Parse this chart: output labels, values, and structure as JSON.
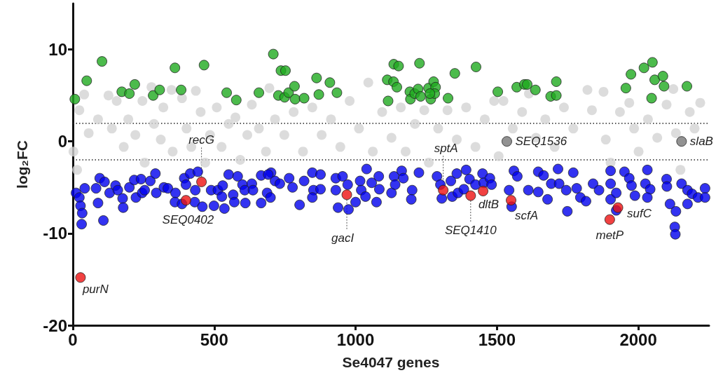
{
  "chart_data": {
    "type": "scatter",
    "xlabel": "Se4047 genes",
    "ylabel": "log₂FC",
    "xlim": [
      0,
      2250
    ],
    "xticks": [
      0,
      500,
      1000,
      1500,
      2000
    ],
    "ylim": [
      -20,
      15
    ],
    "yticks": [
      -20,
      -10,
      0,
      10
    ],
    "grid": false,
    "marker": "circle",
    "ref_lines": [
      {
        "axis": "y",
        "value": 2,
        "color": "#222222",
        "line_style": "dotted"
      },
      {
        "axis": "y",
        "value": -2,
        "color": "#222222",
        "line_style": "dotted"
      }
    ],
    "series": [
      {
        "color": "#d3d3d3",
        "x": [
          40,
          23,
          2,
          15,
          56,
          89,
          126,
          138,
          155,
          180,
          196,
          221,
          246,
          254,
          278,
          287,
          311,
          320,
          349,
          353,
          386,
          402,
          419,
          435,
          452,
          468,
          485,
          509,
          526,
          551,
          575,
          592,
          617,
          633,
          658,
          683,
          695,
          715,
          748,
          781,
          814,
          847,
          880,
          913,
          946,
          979,
          1012,
          1045,
          1061,
          1094,
          1127,
          1160,
          1177,
          1210,
          1243,
          1259,
          1292,
          1325,
          1358,
          1391,
          1424,
          1457,
          1490,
          1523,
          1506,
          1556,
          1589,
          1613,
          1638,
          1671,
          1704,
          1737,
          1770,
          1820,
          1836,
          1877,
          1885,
          1902,
          1935,
          1968,
          1985,
          2001,
          2034,
          2050,
          2067,
          2100,
          2124,
          2133,
          2149,
          2182,
          2199,
          2219
        ],
        "values": [
          5.1,
          3.4,
          -1.1,
          -3.1,
          0.9,
          2.4,
          5.0,
          1.4,
          4.4,
          -0.6,
          2.4,
          0.7,
          4.4,
          -2.3,
          5.9,
          1.9,
          0.2,
          3.7,
          5.6,
          -1.1,
          4.7,
          1.4,
          -0.6,
          5.5,
          3.2,
          -2.3,
          0.7,
          3.7,
          -0.6,
          1.9,
          2.6,
          -2.0,
          0.7,
          4.0,
          1.4,
          -1.1,
          5.8,
          2.4,
          0.7,
          3.2,
          -1.1,
          3.7,
          0.7,
          2.4,
          -0.6,
          4.4,
          1.4,
          6.4,
          -1.1,
          3.2,
          0.4,
          3.7,
          -1.1,
          1.9,
          3.4,
          -2.3,
          1.4,
          3.4,
          0.2,
          3.7,
          -0.6,
          2.4,
          4.4,
          4.4,
          -1.6,
          1.4,
          3.2,
          5.2,
          0.4,
          2.4,
          -0.6,
          3.7,
          1.4,
          5.6,
          3.4,
          5.4,
          0.2,
          -2.3,
          3.2,
          4.2,
          1.4,
          -1.1,
          2.4,
          null,
          0.4,
          4.0,
          5.7,
          0.9,
          -3.1,
          3.2,
          1.4,
          4.2
        ]
      },
      {
        "color": "#1faa1f",
        "x": [
          7,
          49,
          103,
          173,
          200,
          219,
          284,
          307,
          361,
          383,
          464,
          544,
          578,
          658,
          709,
          727,
          736,
          752,
          749,
          763,
          784,
          786,
          818,
          862,
          870,
          909,
          934,
          1112,
          1135,
          1152,
          1134,
          1146,
          1115,
          1192,
          1194,
          1209,
          1221,
          1226,
          1230,
          1258,
          1266,
          1276,
          1283,
          1280,
          1263,
          1327,
          1351,
          1426,
          1503,
          1570,
          1597,
          1607,
          1636,
          1710,
          1690,
          1710,
          1956,
          1974,
          2020,
          2050,
          2058,
          2087,
          2091,
          2047,
          2172
        ],
        "values": [
          4.6,
          6.6,
          8.7,
          5.4,
          5.2,
          6.2,
          5.0,
          5.6,
          8.0,
          5.6,
          8.3,
          5.3,
          4.5,
          5.3,
          9.5,
          5.0,
          7.7,
          7.7,
          4.8,
          5.3,
          6.0,
          4.6,
          4.7,
          6.9,
          5.1,
          6.4,
          5.3,
          6.7,
          8.4,
          8.2,
          6.5,
          5.9,
          4.4,
          5.4,
          4.6,
          5.2,
          5.7,
          8.5,
          4.9,
          5.8,
          4.6,
          6.5,
          5.9,
          5.2,
          5.2,
          4.7,
          7.4,
          8.1,
          5.4,
          5.9,
          6.2,
          6.2,
          5.6,
          6.5,
          4.9,
          5.0,
          5.8,
          7.3,
          8.0,
          8.6,
          6.7,
          7.1,
          6.0,
          4.7,
          6.0
        ]
      },
      {
        "color": "#0000ee",
        "x": [
          11,
          23,
          27,
          33,
          31,
          42,
          82,
          95,
          89,
          112,
          108,
          130,
          151,
          159,
          176,
          178,
          200,
          217,
          223,
          245,
          241,
          254,
          274,
          292,
          295,
          322,
          336,
          363,
          361,
          386,
          394,
          400,
          415,
          433,
          431,
          442,
          458,
          489,
          499,
          513,
          530,
          527,
          536,
          551,
          567,
          571,
          583,
          600,
          610,
          608,
          633,
          637,
          666,
          666,
          687,
          701,
          715,
          691,
          699,
          732,
          765,
          777,
          802,
          818,
          847,
          851,
          876,
          876,
          847,
          930,
          930,
          938,
          954,
          972,
          975,
          1000,
          1016,
          1020,
          1035,
          1039,
          1057,
          1074,
          1082,
          1084,
          1127,
          1136,
          1140,
          1163,
          1169,
          1200,
          1197,
          1224,
          1288,
          1300,
          1305,
          1337,
          1342,
          1358,
          1362,
          1383,
          1391,
          1403,
          1424,
          1449,
          1453,
          1475,
          1481,
          1552,
          1543,
          1560,
          1572,
          1611,
          1646,
          1646,
          1665,
          1679,
          1692,
          1716,
          1720,
          1745,
          1749,
          1770,
          1782,
          1795,
          1815,
          1840,
          1861,
          1902,
          1902,
          1902,
          1922,
          1922,
          1951,
          1968,
          1976,
          1988,
          2032,
          2025,
          2042,
          2032,
          2100,
          2101,
          2112,
          2133,
          2129,
          2131,
          2153,
          2174,
          2174,
          2190,
          2211,
          2236,
          2236
        ],
        "values": [
          -5.6,
          -6.1,
          -7.0,
          -7.8,
          -9.0,
          -5.1,
          -5.1,
          -4.0,
          -6.7,
          -4.4,
          -8.6,
          -5.6,
          -4.8,
          -5.3,
          -6.2,
          -7.2,
          -5.0,
          -4.2,
          -6.1,
          -5.6,
          -4.1,
          -5.3,
          -4.3,
          -3.5,
          -5.6,
          -5.0,
          -5.1,
          -5.6,
          -6.6,
          -6.8,
          -4.0,
          -4.7,
          -3.5,
          -5.3,
          -6.6,
          -3.3,
          -7.1,
          -5.3,
          -7.0,
          -5.3,
          -4.8,
          -6.0,
          -7.3,
          -3.6,
          -5.8,
          -6.6,
          -3.8,
          -4.7,
          -6.7,
          -5.3,
          -4.6,
          -5.3,
          -3.7,
          -6.7,
          -5.6,
          -3.4,
          -4.3,
          -3.6,
          -6.1,
          -4.6,
          -4.0,
          -5.0,
          -6.9,
          -4.3,
          -3.4,
          -5.3,
          -3.6,
          -5.2,
          -6.1,
          -4.0,
          -5.3,
          -7.2,
          -3.8,
          -4.7,
          -7.4,
          -6.6,
          -4.3,
          -5.3,
          -6.0,
          -3.0,
          -4.5,
          -6.6,
          -3.8,
          -5.2,
          -5.6,
          -3.8,
          -4.7,
          -3.2,
          -4.0,
          -5.3,
          -6.3,
          -3.4,
          -3.8,
          -4.7,
          -6.2,
          -4.3,
          -6.0,
          -3.5,
          -5.6,
          -5.2,
          -3.1,
          -4.1,
          -4.7,
          -3.5,
          -4.5,
          -4.0,
          -4.7,
          -7.1,
          -5.3,
          -3.2,
          -3.8,
          -5.3,
          -3.3,
          -5.5,
          -3.7,
          -6.3,
          -4.6,
          -3.0,
          -4.6,
          -5.3,
          -7.6,
          -3.4,
          -5.1,
          -6.1,
          -6.5,
          -4.6,
          -5.3,
          -3.2,
          -4.6,
          -6.3,
          -5.6,
          -7.5,
          -3.3,
          -4.0,
          -4.8,
          -5.9,
          -3.1,
          -4.6,
          -5.2,
          -6.1,
          -4.1,
          -4.9,
          -6.8,
          -7.6,
          -9.3,
          -10.1,
          -4.6,
          -5.3,
          -6.8,
          -5.7,
          -6.1,
          -5.1,
          -6.1
        ]
      },
      {
        "color": "#ee1111",
        "x": [
          27,
          400,
          455,
          969,
          1310,
          1407,
          1451,
          1550,
          1899,
          1928
        ],
        "values": [
          -14.8,
          -6.4,
          -4.4,
          -5.8,
          -5.3,
          -5.9,
          -5.4,
          -6.4,
          -8.5,
          -7.2
        ]
      },
      {
        "color": "#777777",
        "x": [
          1535,
          2153
        ],
        "values": [
          0,
          0
        ]
      }
    ],
    "annotations": [
      {
        "text": "purN",
        "x": 27,
        "y": -14.8
      },
      {
        "text": "SEQ0402",
        "x": 400,
        "y": -6.4
      },
      {
        "text": "recG",
        "x": 455,
        "y": -4.4
      },
      {
        "text": "gacI",
        "x": 969,
        "y": -5.8
      },
      {
        "text": "sptA",
        "x": 1310,
        "y": -5.3
      },
      {
        "text": "SEQ1410",
        "x": 1407,
        "y": -5.9
      },
      {
        "text": "dltB",
        "x": 1451,
        "y": -5.4
      },
      {
        "text": "scfA",
        "x": 1550,
        "y": -6.4
      },
      {
        "text": "metP",
        "x": 1899,
        "y": -8.5
      },
      {
        "text": "sufC",
        "x": 1928,
        "y": -7.2
      },
      {
        "text": "SEQ1536",
        "x": 1535,
        "y": 0
      },
      {
        "text": "slaB",
        "x": 2153,
        "y": 0
      }
    ]
  }
}
